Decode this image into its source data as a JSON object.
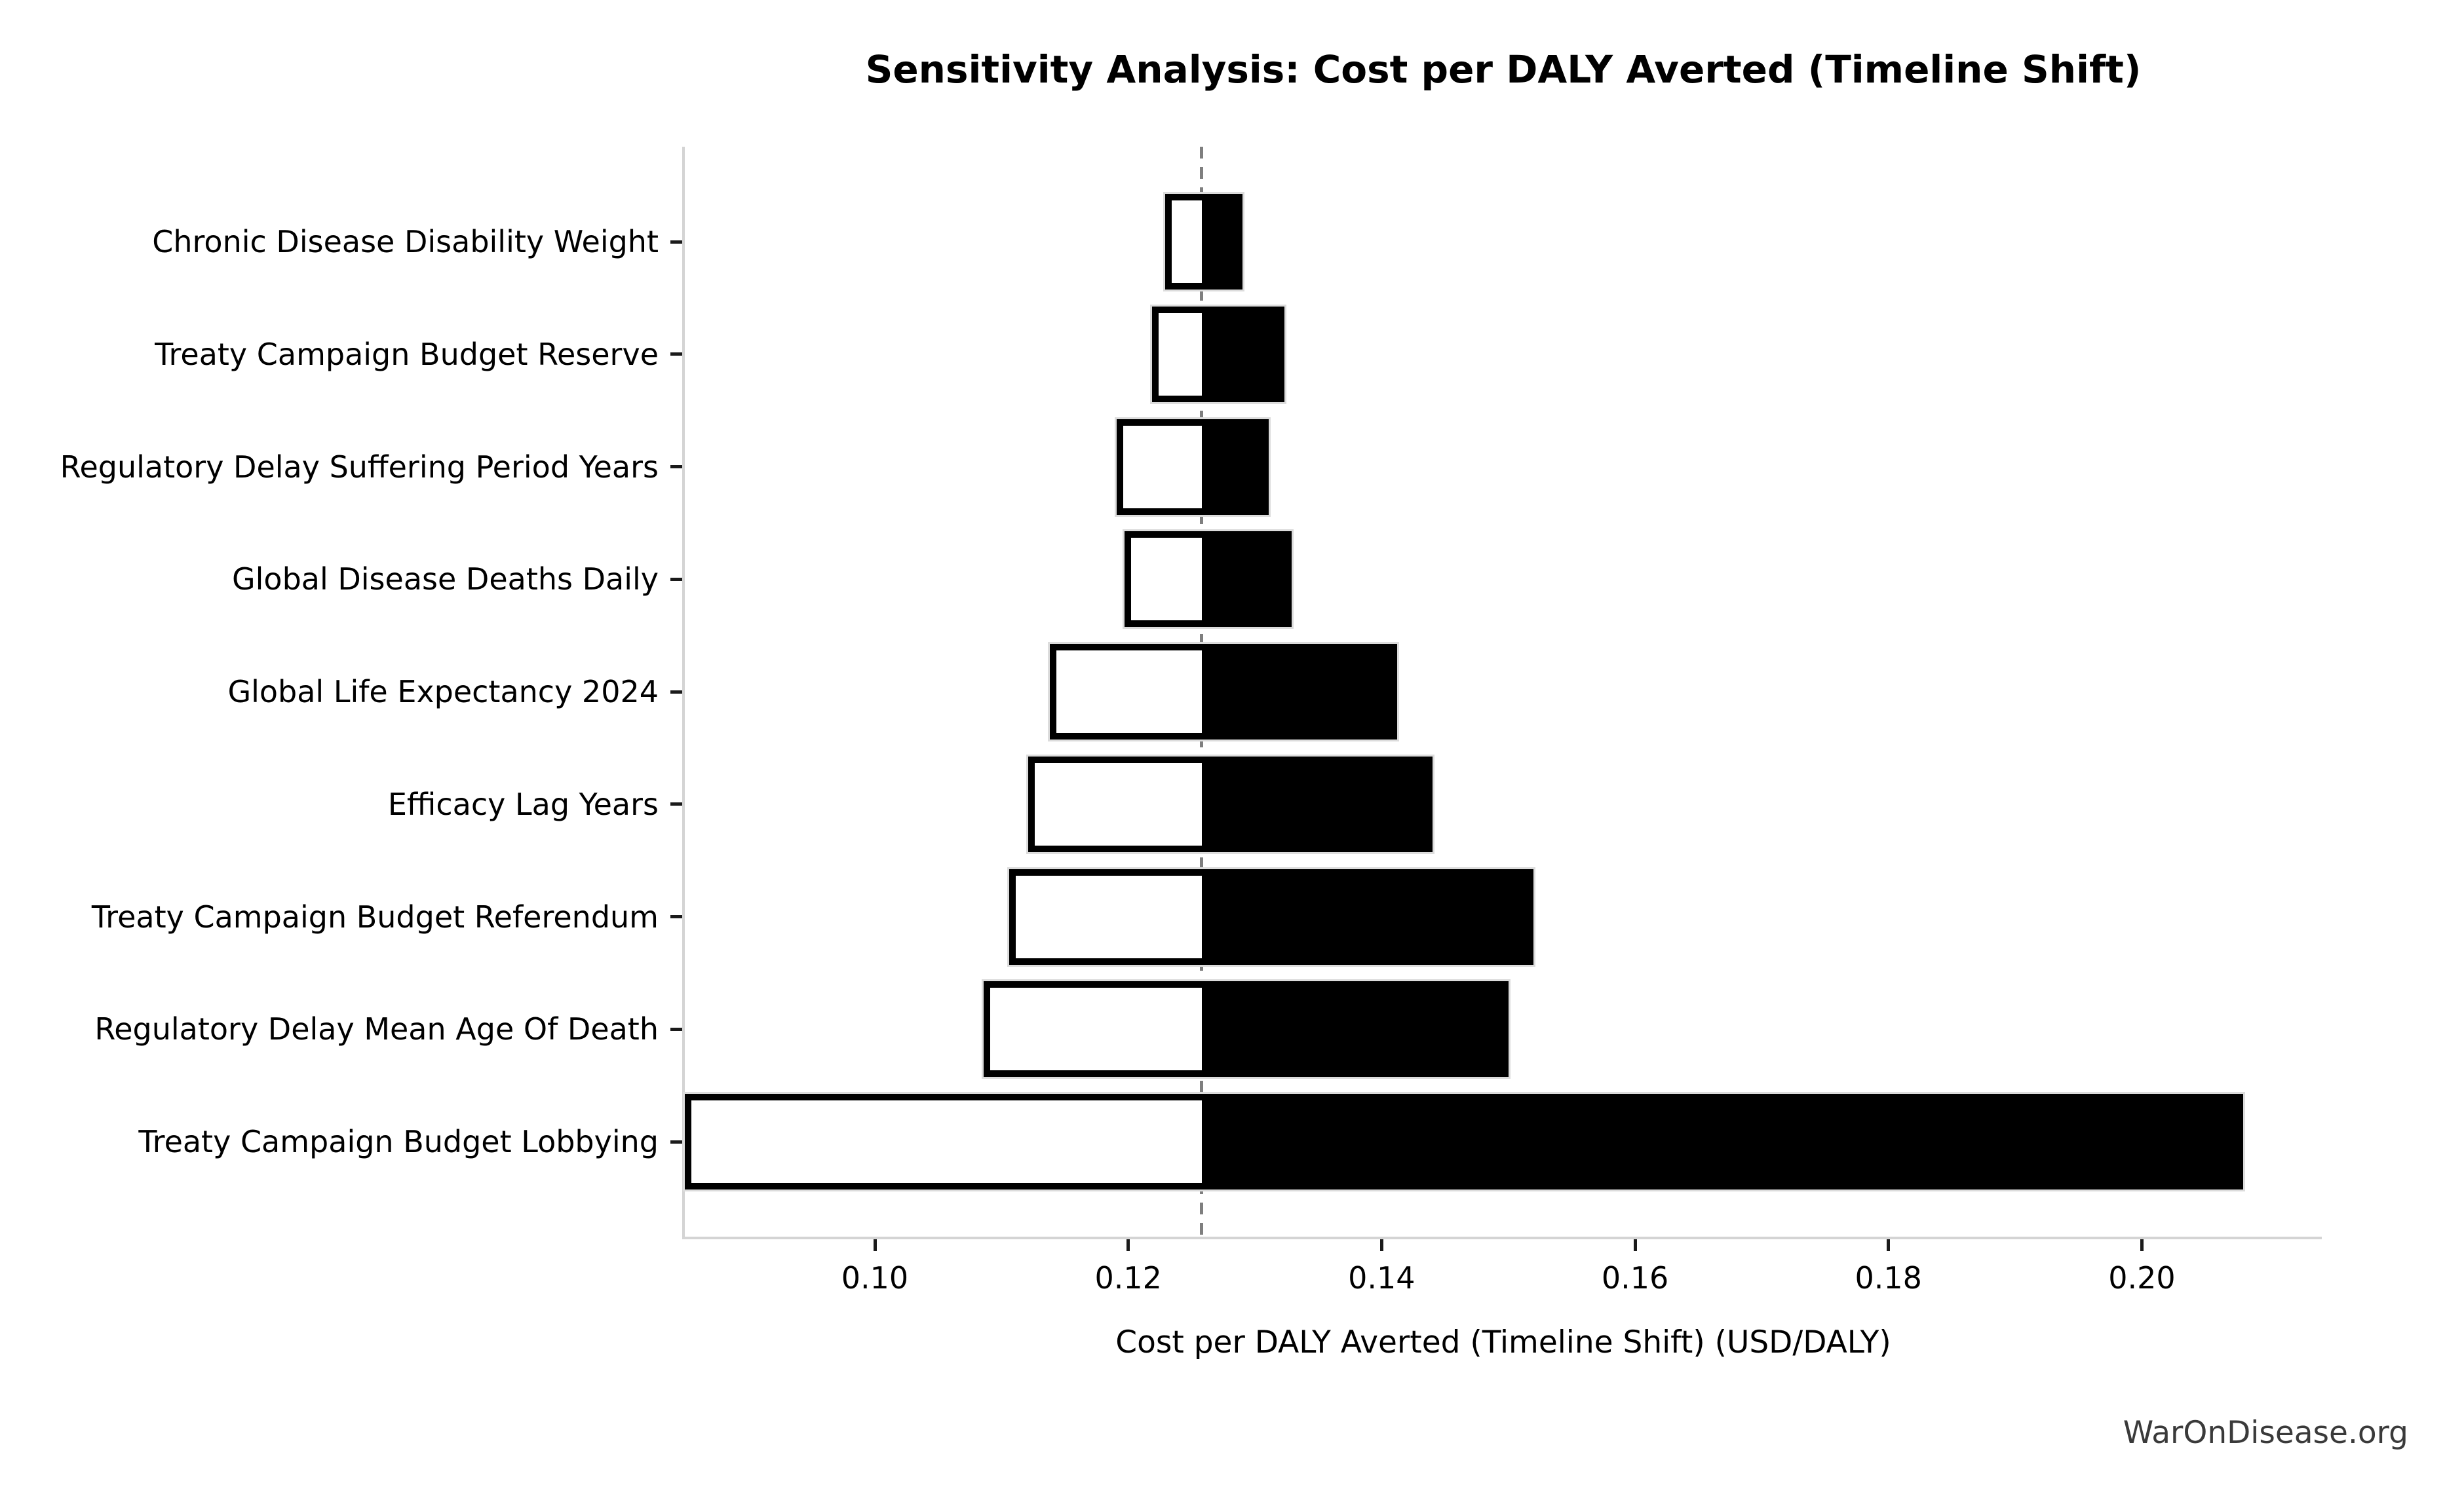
{
  "title": "Sensitivity Analysis: Cost per DALY Averted (Timeline Shift)",
  "watermark": "WarOnDisease.org",
  "chart_data": {
    "type": "bar",
    "subtype": "tornado",
    "orientation": "horizontal",
    "title": "Sensitivity Analysis: Cost per DALY Averted (Timeline Shift)",
    "xlabel": "Cost per DALY Averted (Timeline Shift) (USD/DALY)",
    "ylabel": "",
    "baseline": 0.1258,
    "xlim": [
      0.085,
      0.2142
    ],
    "x_ticks": [
      0.1,
      0.12,
      0.14,
      0.16,
      0.18,
      0.2
    ],
    "x_tick_labels": [
      "0.10",
      "0.12",
      "0.14",
      "0.16",
      "0.18",
      "0.20"
    ],
    "grid": false,
    "legend": "none",
    "categories": [
      "Chronic Disease Disability Weight",
      "Treaty Campaign Budget Reserve",
      "Regulatory Delay Suffering Period Years",
      "Global Disease Deaths Daily",
      "Global Life Expectancy 2024",
      "Efficacy Lag Years",
      "Treaty Campaign Budget Referendum",
      "Regulatory Delay Mean Age Of Death",
      "Treaty Campaign Budget Lobbying"
    ],
    "series": [
      {
        "name": "low_end",
        "fill": "white",
        "values": [
          0.1229,
          0.1219,
          0.1191,
          0.1197,
          0.1138,
          0.1121,
          0.1106,
          0.1086,
          0.085
        ]
      },
      {
        "name": "high_end",
        "fill": "black",
        "values": [
          0.129,
          0.1323,
          0.1311,
          0.1329,
          0.1412,
          0.144,
          0.152,
          0.15,
          0.208
        ]
      }
    ],
    "colors": {
      "low_fill": "#ffffff",
      "high_fill": "#000000",
      "bar_edge": "#000000",
      "bar_halo": "#dcdcdc",
      "baseline_line": "#7f7f7f",
      "spine": "#d4d4d4",
      "tick": "#1a1a1a",
      "text": "#000000",
      "watermark_text": "#3a3a3a"
    }
  }
}
